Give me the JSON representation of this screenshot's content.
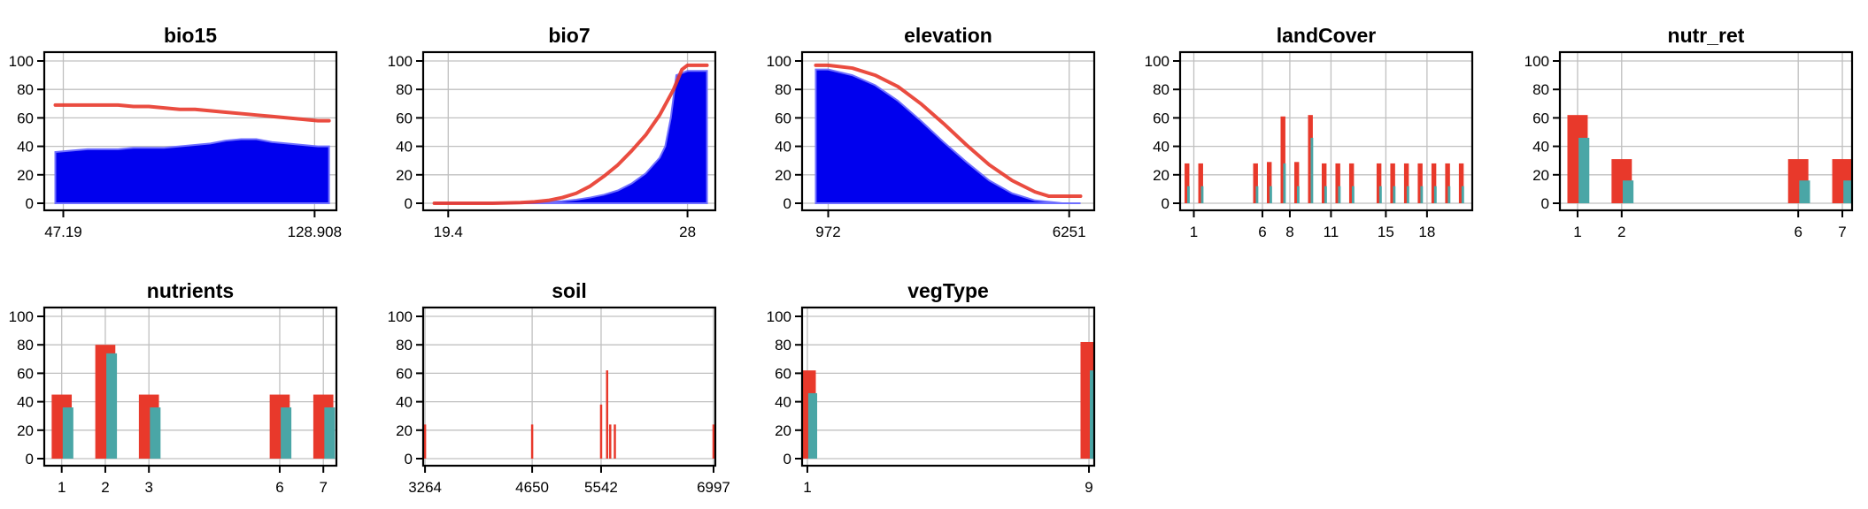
{
  "colors": {
    "red_series": "#e8392b",
    "teal_series": "#4aa6a6",
    "blue_fill": "#0000ee",
    "blue_line": "#6f6fff",
    "grid": "#c0c0c0",
    "axis": "#000000"
  },
  "chart_data": [
    {
      "id": "bio15",
      "type": "area",
      "title": "bio15",
      "xlim": [
        41.0,
        136.0
      ],
      "ylim": [
        0,
        100
      ],
      "grid": true,
      "yticks": [
        "0",
        "20",
        "40",
        "60",
        "80",
        "100"
      ],
      "xticks": [
        {
          "value": 47.19,
          "label": "47.19"
        },
        {
          "value": 128.908,
          "label": "128.908"
        }
      ],
      "area": {
        "x": [
          44.6,
          50,
          55,
          60,
          65,
          70,
          75,
          80,
          85,
          90,
          95,
          100,
          105,
          110,
          115,
          120,
          125,
          130,
          133.6
        ],
        "y": [
          36,
          37,
          38,
          38,
          38,
          39,
          39,
          39,
          40,
          41,
          42,
          44,
          45,
          45,
          43,
          42,
          41,
          40,
          40
        ]
      },
      "line": {
        "x": [
          44.6,
          50,
          55,
          60,
          65,
          70,
          75,
          80,
          85,
          90,
          95,
          100,
          105,
          110,
          115,
          120,
          125,
          130,
          133.6
        ],
        "y": [
          69,
          69,
          69,
          69,
          69,
          68,
          68,
          67,
          66,
          66,
          65,
          64,
          63,
          62,
          61,
          60,
          59,
          58,
          58
        ]
      }
    },
    {
      "id": "bio7",
      "type": "area",
      "title": "bio7",
      "xlim": [
        18.5,
        29.0
      ],
      "ylim": [
        0,
        100
      ],
      "grid": true,
      "yticks": [
        "0",
        "20",
        "40",
        "60",
        "80",
        "100"
      ],
      "xticks": [
        {
          "value": 19.4,
          "label": "19.4"
        },
        {
          "value": 28,
          "label": "28"
        }
      ],
      "area": {
        "x": [
          18.9,
          19.4,
          20,
          21,
          22,
          22.5,
          23,
          23.5,
          24,
          24.5,
          25,
          25.5,
          26,
          26.5,
          27,
          27.2,
          27.4,
          27.6,
          28,
          28.7
        ],
        "y": [
          0,
          0,
          0,
          0,
          0,
          0.5,
          1,
          1.5,
          2.5,
          4,
          6,
          9,
          14,
          21,
          32,
          40,
          60,
          90,
          93,
          93
        ]
      },
      "line": {
        "x": [
          18.9,
          19.4,
          20,
          21,
          22,
          22.5,
          23,
          23.5,
          24,
          24.5,
          25,
          25.5,
          26,
          26.5,
          27,
          27.5,
          27.8,
          28,
          28.7
        ],
        "y": [
          0,
          0,
          0,
          0,
          0.5,
          1,
          2,
          4,
          7,
          12,
          19,
          27,
          37,
          48,
          62,
          80,
          94,
          97,
          97
        ]
      }
    },
    {
      "id": "elevation",
      "type": "area",
      "title": "elevation",
      "xlim": [
        400,
        6800
      ],
      "ylim": [
        0,
        100
      ],
      "grid": true,
      "yticks": [
        "0",
        "20",
        "40",
        "60",
        "80",
        "100"
      ],
      "xticks": [
        {
          "value": 972,
          "label": "972"
        },
        {
          "value": 6251,
          "label": "6251"
        }
      ],
      "area": {
        "x": [
          700,
          972,
          1500,
          2000,
          2500,
          3000,
          3500,
          4000,
          4500,
          5000,
          5500,
          5800,
          6100,
          6500
        ],
        "y": [
          94,
          94,
          90,
          83,
          72,
          58,
          43,
          29,
          16,
          7,
          2,
          1,
          0,
          0
        ]
      },
      "line": {
        "x": [
          700,
          972,
          1500,
          2000,
          2500,
          3000,
          3500,
          4000,
          4500,
          5000,
          5500,
          5800,
          6100,
          6500
        ],
        "y": [
          97,
          97,
          95,
          90,
          82,
          70,
          56,
          41,
          27,
          16,
          8,
          5,
          5,
          5
        ]
      }
    },
    {
      "id": "landCover",
      "type": "bar",
      "title": "landCover",
      "xlim": [
        0,
        21.3
      ],
      "ylim": [
        0,
        100
      ],
      "grid": true,
      "yticks": [
        "0",
        "20",
        "40",
        "60",
        "80",
        "100"
      ],
      "xticks": [
        {
          "value": 1,
          "label": "1"
        },
        {
          "value": 6,
          "label": "6"
        },
        {
          "value": 8,
          "label": "8"
        },
        {
          "value": 11,
          "label": "11"
        },
        {
          "value": 15,
          "label": "15"
        },
        {
          "value": 18,
          "label": "18"
        }
      ],
      "bar_width": 0.35,
      "categories": [
        0.5,
        1.5,
        5.5,
        6.5,
        7.5,
        8.5,
        9.5,
        10.5,
        11.5,
        12.5,
        14.5,
        15.5,
        16.5,
        17.5,
        18.5,
        19.5,
        20.5
      ],
      "series": [
        {
          "values": [
            28,
            28,
            28,
            29,
            61,
            29,
            62,
            28,
            28,
            28,
            28,
            28,
            28,
            28,
            28,
            28,
            28
          ]
        },
        {
          "values": [
            12,
            12,
            12,
            12,
            28,
            12,
            46,
            12,
            12,
            12,
            12,
            12,
            12,
            12,
            12,
            12,
            12
          ]
        }
      ]
    },
    {
      "id": "nutr_ret",
      "type": "bar",
      "title": "nutr_ret",
      "xlim": [
        0.6,
        7.22
      ],
      "ylim": [
        0,
        100
      ],
      "grid": true,
      "yticks": [
        "0",
        "20",
        "40",
        "60",
        "80",
        "100"
      ],
      "xticks": [
        {
          "value": 1,
          "label": "1"
        },
        {
          "value": 2,
          "label": "2"
        },
        {
          "value": 6,
          "label": "6"
        },
        {
          "value": 7,
          "label": "7"
        }
      ],
      "bar_width": 0.46,
      "categories": [
        1,
        2,
        6,
        7
      ],
      "series": [
        {
          "values": [
            62,
            31,
            31,
            31
          ]
        },
        {
          "values": [
            46,
            16,
            16,
            16
          ]
        }
      ]
    },
    {
      "id": "nutrients",
      "type": "bar",
      "title": "nutrients",
      "xlim": [
        0.6,
        7.3
      ],
      "ylim": [
        0,
        100
      ],
      "grid": true,
      "yticks": [
        "0",
        "20",
        "40",
        "60",
        "80",
        "100"
      ],
      "xticks": [
        {
          "value": 1,
          "label": "1"
        },
        {
          "value": 2,
          "label": "2"
        },
        {
          "value": 3,
          "label": "3"
        },
        {
          "value": 6,
          "label": "6"
        },
        {
          "value": 7,
          "label": "7"
        }
      ],
      "bar_width": 0.46,
      "categories": [
        1,
        2,
        3,
        6,
        7
      ],
      "series": [
        {
          "values": [
            45,
            80,
            45,
            45,
            45
          ]
        },
        {
          "values": [
            36,
            74,
            36,
            36,
            36
          ]
        }
      ]
    },
    {
      "id": "soil",
      "type": "bar",
      "title": "soil",
      "xlim": [
        3240,
        7020
      ],
      "ylim": [
        0,
        100
      ],
      "grid": true,
      "yticks": [
        "0",
        "20",
        "40",
        "60",
        "80",
        "100"
      ],
      "xticks": [
        {
          "value": 3264,
          "label": "3264"
        },
        {
          "value": 4650,
          "label": "4650"
        },
        {
          "value": 5542,
          "label": "5542"
        },
        {
          "value": 6997,
          "label": "6997"
        }
      ],
      "line_bars": true,
      "categories": [
        3264,
        4650,
        5542,
        5620,
        5660,
        5720,
        6997
      ],
      "series": [
        {
          "values": [
            24,
            24,
            38,
            62,
            24,
            24,
            24
          ]
        }
      ]
    },
    {
      "id": "vegType",
      "type": "bar",
      "title": "vegType",
      "xlim": [
        0.85,
        9.15
      ],
      "ylim": [
        0,
        100
      ],
      "grid": true,
      "yticks": [
        "0",
        "20",
        "40",
        "60",
        "80",
        "100"
      ],
      "xticks": [
        {
          "value": 1,
          "label": "1"
        },
        {
          "value": 9,
          "label": "9"
        }
      ],
      "bar_width": 0.48,
      "categories": [
        1,
        9
      ],
      "series": [
        {
          "values": [
            62,
            82
          ]
        },
        {
          "values": [
            46,
            62
          ]
        }
      ]
    }
  ]
}
